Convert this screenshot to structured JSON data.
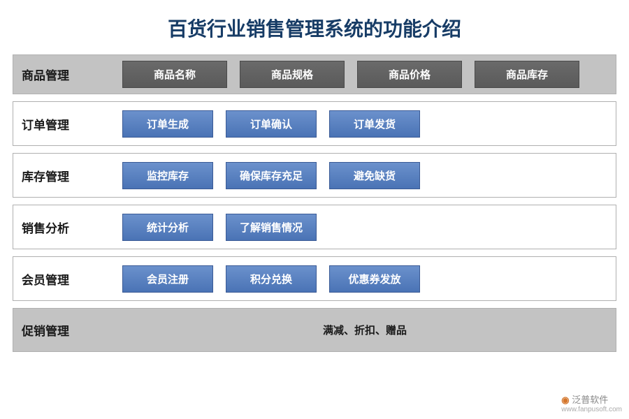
{
  "title": "百货行业销售管理系统的功能介绍",
  "colors": {
    "title_color": "#173c66",
    "gray_row_bg": "#c3c3c3",
    "border_color": "#b0b0b0",
    "gray_item_bg": "#5f5f5f",
    "blue_item_bg_top": "#6b91cc",
    "blue_item_bg_bottom": "#4a73b5",
    "text_white": "#ffffff",
    "text_dark": "#1a1a1a"
  },
  "rows": [
    {
      "category": "商品管理",
      "style": "gray",
      "items": [
        "商品名称",
        "商品规格",
        "商品价格",
        "商品库存"
      ]
    },
    {
      "category": "订单管理",
      "style": "blue",
      "items": [
        "订单生成",
        "订单确认",
        "订单发货"
      ]
    },
    {
      "category": "库存管理",
      "style": "blue",
      "items": [
        "监控库存",
        "确保库存充足",
        "避免缺货"
      ]
    },
    {
      "category": "销售分析",
      "style": "blue",
      "items": [
        "统计分析",
        "了解销售情况"
      ]
    },
    {
      "category": "会员管理",
      "style": "blue",
      "items": [
        "会员注册",
        "积分兑换",
        "优惠券发放"
      ]
    }
  ],
  "footer": {
    "category": "促销管理",
    "text": "满减、折扣、赠品"
  },
  "watermark": {
    "brand": "泛普软件",
    "url": "www.fanpusoft.com"
  }
}
